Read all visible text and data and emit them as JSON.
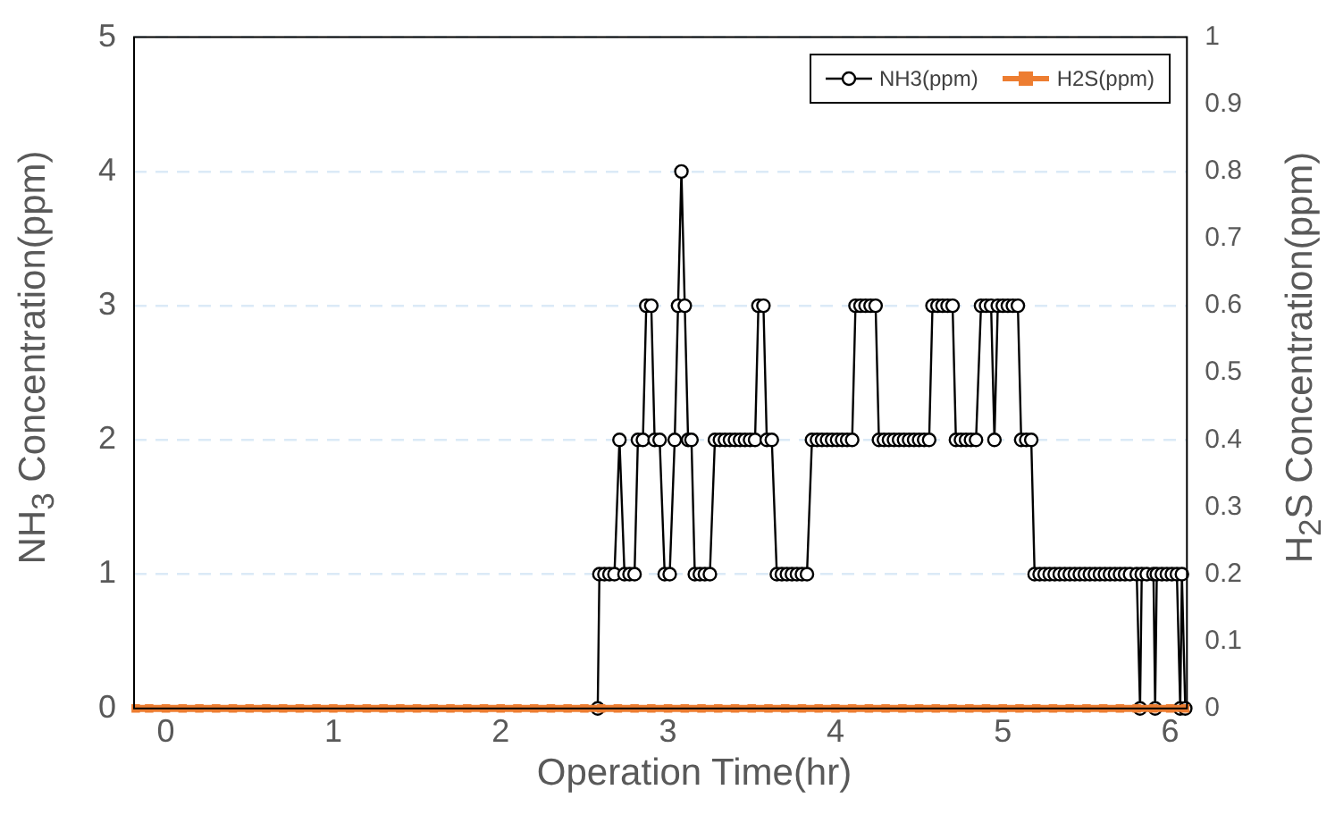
{
  "chart_data": {
    "type": "line",
    "xlabel": "Operation Time(hr)",
    "ylabel": "NH$_{3}$ Concentration(ppm)",
    "y2label": "H$_{2}$S Concentration(ppm)",
    "xlim": [
      -0.19,
      6.1
    ],
    "xticks": [
      0,
      1,
      2,
      3,
      4,
      5,
      6
    ],
    "ylim": [
      0,
      5
    ],
    "yticks": [
      0,
      1,
      2,
      3,
      4,
      5
    ],
    "y2lim": [
      0,
      1
    ],
    "y2ticks": [
      0,
      0.1,
      0.2,
      0.3,
      0.4,
      0.5,
      0.6,
      0.7,
      0.8,
      0.9,
      1
    ],
    "grid": "y",
    "legend": "top right",
    "line_style": "solid",
    "series": [
      {
        "name": "NH3(ppm)",
        "color": "#000000",
        "marker": "circle",
        "axis": "y",
        "x": [
          2.58,
          2.59,
          2.62,
          2.65,
          2.68,
          2.71,
          2.74,
          2.77,
          2.8,
          2.82,
          2.85,
          2.87,
          2.9,
          2.92,
          2.95,
          2.98,
          3.01,
          3.04,
          3.06,
          3.08,
          3.1,
          3.12,
          3.14,
          3.16,
          3.19,
          3.22,
          3.25,
          3.28,
          3.31,
          3.34,
          3.37,
          3.4,
          3.43,
          3.46,
          3.49,
          3.52,
          3.54,
          3.57,
          3.59,
          3.62,
          3.65,
          3.68,
          3.71,
          3.74,
          3.77,
          3.8,
          3.83,
          3.86,
          3.89,
          3.92,
          3.95,
          3.98,
          4.01,
          4.04,
          4.07,
          4.1,
          4.12,
          4.15,
          4.18,
          4.21,
          4.24,
          4.26,
          4.29,
          4.32,
          4.35,
          4.38,
          4.41,
          4.44,
          4.47,
          4.5,
          4.53,
          4.56,
          4.58,
          4.61,
          4.64,
          4.67,
          4.7,
          4.72,
          4.75,
          4.78,
          4.81,
          4.84,
          4.87,
          4.9,
          4.93,
          4.95,
          4.97,
          5.0,
          5.03,
          5.06,
          5.09,
          5.11,
          5.14,
          5.17,
          5.19,
          5.22,
          5.25,
          5.28,
          5.31,
          5.34,
          5.37,
          5.4,
          5.43,
          5.46,
          5.49,
          5.52,
          5.55,
          5.58,
          5.61,
          5.64,
          5.67,
          5.7,
          5.73,
          5.76,
          5.8,
          5.82,
          5.83,
          5.86,
          5.9,
          5.91,
          5.92,
          5.95,
          5.98,
          6.01,
          6.04,
          6.06,
          6.07,
          6.09
        ],
        "values": [
          0,
          1,
          1,
          1,
          1,
          2,
          1,
          1,
          1,
          2,
          2,
          3,
          3,
          2,
          2,
          1,
          1,
          2,
          3,
          4,
          3,
          2,
          2,
          1,
          1,
          1,
          1,
          2,
          2,
          2,
          2,
          2,
          2,
          2,
          2,
          2,
          3,
          3,
          2,
          2,
          1,
          1,
          1,
          1,
          1,
          1,
          1,
          2,
          2,
          2,
          2,
          2,
          2,
          2,
          2,
          2,
          3,
          3,
          3,
          3,
          3,
          2,
          2,
          2,
          2,
          2,
          2,
          2,
          2,
          2,
          2,
          2,
          3,
          3,
          3,
          3,
          3,
          2,
          2,
          2,
          2,
          2,
          3,
          3,
          3,
          2,
          3,
          3,
          3,
          3,
          3,
          2,
          2,
          2,
          1,
          1,
          1,
          1,
          1,
          1,
          1,
          1,
          1,
          1,
          1,
          1,
          1,
          1,
          1,
          1,
          1,
          1,
          1,
          1,
          1,
          0,
          1,
          1,
          1,
          0,
          1,
          1,
          1,
          1,
          1,
          0,
          1,
          0
        ]
      },
      {
        "name": "H2S(ppm)",
        "color": "#ed7d31",
        "marker": "square",
        "axis": "y2",
        "x": [
          -0.18,
          -0.1,
          0,
          0.1,
          0.2,
          0.3,
          0.4,
          0.5,
          0.6,
          0.7,
          0.8,
          0.9,
          1,
          1.1,
          1.2,
          1.3,
          1.4,
          1.5,
          1.6,
          1.7,
          1.8,
          1.9,
          2,
          2.1,
          2.2,
          2.3,
          2.4,
          2.5,
          2.6,
          2.7,
          2.8,
          2.9,
          3,
          3.1,
          3.2,
          3.3,
          3.4,
          3.5,
          3.6,
          3.7,
          3.8,
          3.9,
          4,
          4.1,
          4.2,
          4.3,
          4.4,
          4.5,
          4.6,
          4.7,
          4.8,
          4.9,
          5,
          5.1,
          5.2,
          5.3,
          5.4,
          5.5,
          5.6,
          5.7,
          5.8,
          5.9,
          6,
          6.09
        ],
        "values": [
          0,
          0,
          0,
          0,
          0,
          0,
          0,
          0,
          0,
          0,
          0,
          0,
          0,
          0,
          0,
          0,
          0,
          0,
          0,
          0,
          0,
          0,
          0,
          0,
          0,
          0,
          0,
          0,
          0,
          0,
          0,
          0,
          0,
          0,
          0,
          0,
          0,
          0,
          0,
          0,
          0,
          0,
          0,
          0,
          0,
          0,
          0,
          0,
          0,
          0,
          0,
          0,
          0,
          0,
          0,
          0,
          0,
          0,
          0,
          0,
          0,
          0,
          0,
          0
        ]
      }
    ]
  }
}
